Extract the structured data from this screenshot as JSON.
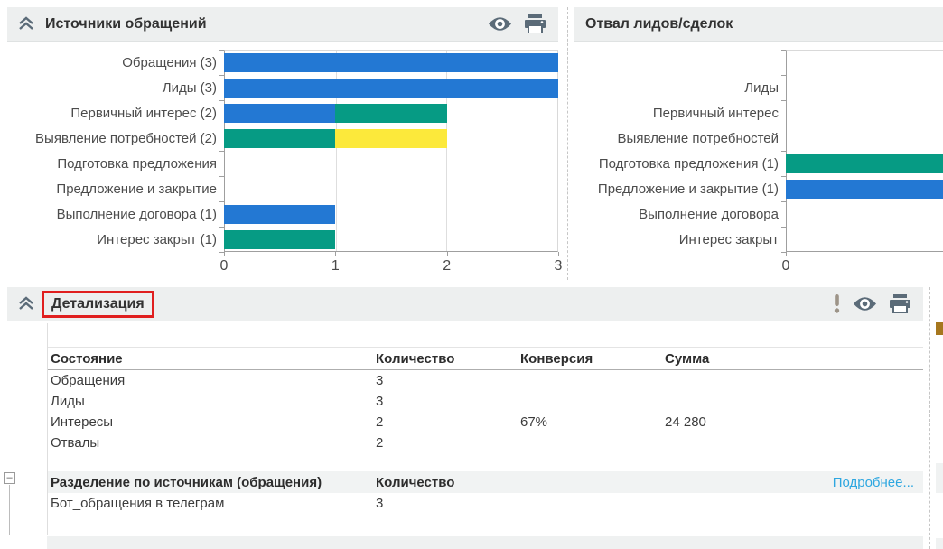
{
  "colors": {
    "blue": "#2378d3",
    "green": "#069b84",
    "yellow": "#fce93b",
    "link": "#2ea7e0",
    "icon": "#5b6b78",
    "warn_icon": "#9d9488",
    "highlight_red": "#e01f1f"
  },
  "sources_panel": {
    "title": "Источники обращений",
    "icons": [
      "collapse-icon",
      "eye-icon",
      "print-icon"
    ]
  },
  "dropout_panel": {
    "title": "Отвал лидов/сделок"
  },
  "detail_panel": {
    "title": "Детализация",
    "icons": [
      "collapse-icon",
      "alert-icon",
      "eye-icon",
      "print-icon"
    ],
    "expander_symbol": "–",
    "table": {
      "columns": [
        "Состояние",
        "Количество",
        "Конверсия",
        "Сумма"
      ],
      "rows": [
        [
          "Обращения",
          "3",
          "",
          ""
        ],
        [
          "Лиды",
          "3",
          "",
          ""
        ],
        [
          "Интересы",
          "2",
          "67%",
          "24 280"
        ],
        [
          "Отвалы",
          "2",
          "",
          ""
        ]
      ]
    },
    "breakdown": {
      "title": "Разделение по источникам (обращения)",
      "count_label": "Количество",
      "more_link": "Подробнее...",
      "rows": [
        [
          "Бот_обращения в телеграм",
          "3"
        ]
      ]
    }
  },
  "chart_data": [
    {
      "type": "bar",
      "orientation": "horizontal",
      "title": "Источники обращений",
      "categories": [
        "Обращения (3)",
        "Лиды (3)",
        "Первичный интерес (2)",
        "Выявление потребностей (2)",
        "Подготовка предложения",
        "Предложение и закрытие",
        "Выполнение договора (1)",
        "Интерес закрыт (1)"
      ],
      "stacked_segments": [
        [
          {
            "color": "blue",
            "value": 3
          }
        ],
        [
          {
            "color": "blue",
            "value": 3
          }
        ],
        [
          {
            "color": "blue",
            "value": 1
          },
          {
            "color": "green",
            "value": 1
          }
        ],
        [
          {
            "color": "green",
            "value": 1
          },
          {
            "color": "yellow",
            "value": 1
          }
        ],
        [],
        [],
        [
          {
            "color": "blue",
            "value": 1
          }
        ],
        [
          {
            "color": "green",
            "value": 1
          }
        ]
      ],
      "xlim": [
        0,
        3
      ],
      "x_ticks": [
        "0",
        "1",
        "2",
        "3"
      ],
      "grid": true,
      "legend": false
    },
    {
      "type": "bar",
      "orientation": "horizontal",
      "title": "Отвал лидов/сделок",
      "categories": [
        "",
        "Лиды",
        "Первичный интерес",
        "Выявление потребностей",
        "Подготовка предложения (1)",
        "Предложение и закрытие (1)",
        "Выполнение договора",
        "Интерес закрыт"
      ],
      "stacked_segments": [
        [],
        [],
        [],
        [],
        [
          {
            "color": "green",
            "value": 1
          }
        ],
        [
          {
            "color": "blue",
            "value": 1
          }
        ],
        [],
        []
      ],
      "x_ticks": [
        "0"
      ],
      "grid": false,
      "legend": false
    }
  ]
}
